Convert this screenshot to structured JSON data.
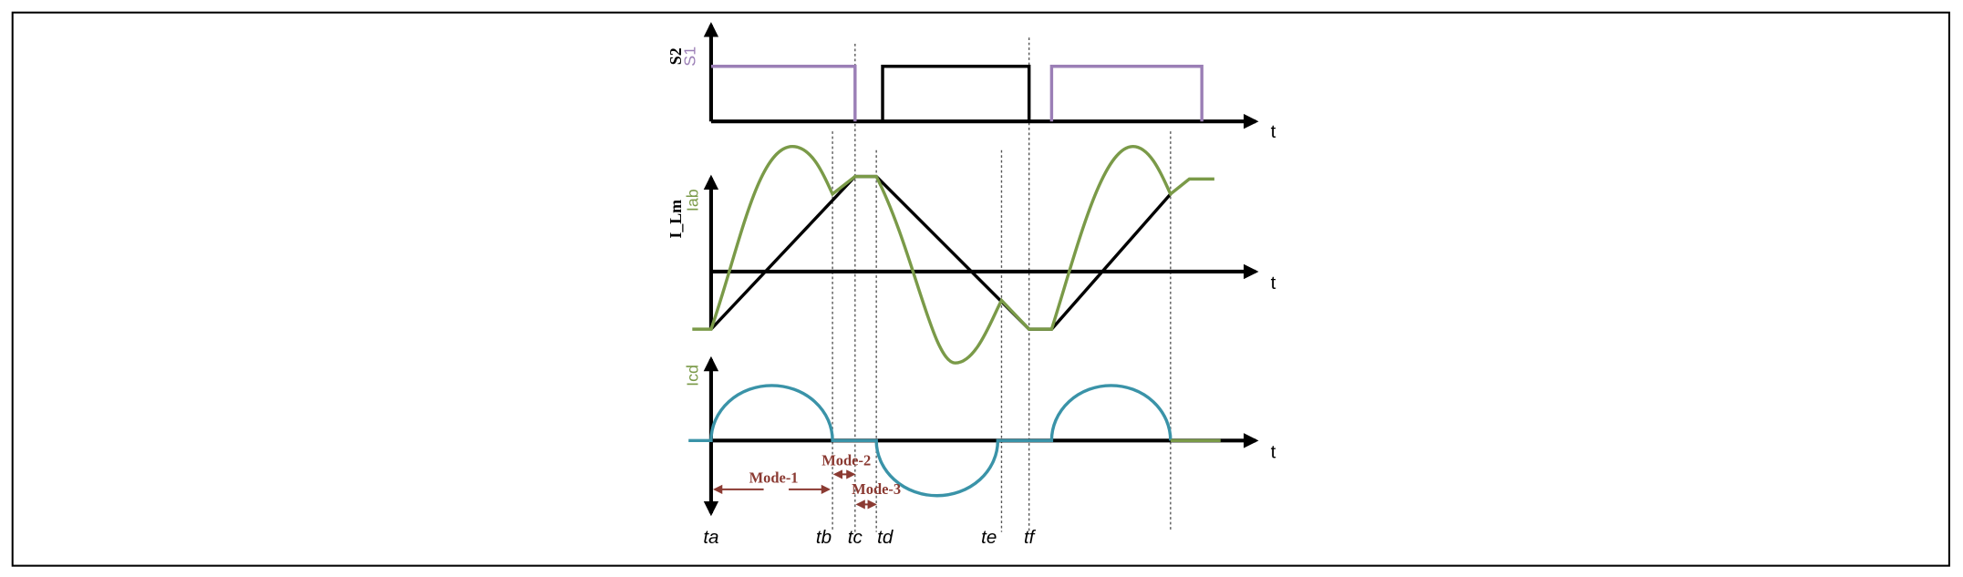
{
  "panels": [
    {
      "y_labels": [
        "S2",
        "S1"
      ],
      "x_label": "t"
    },
    {
      "y_labels": [
        "I_Lm",
        "Iab"
      ],
      "x_label": "t"
    },
    {
      "y_labels": [
        "Icd"
      ],
      "x_label": "t"
    }
  ],
  "modes": [
    "Mode-1",
    "Mode-2",
    "Mode-3"
  ],
  "time_marks": [
    "ta",
    "tb",
    "tc",
    "td",
    "te",
    "tf"
  ]
}
